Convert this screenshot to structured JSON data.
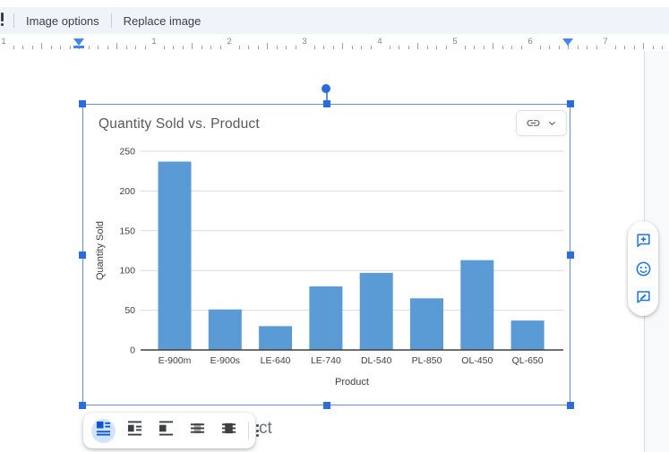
{
  "toolbar": {
    "image_options": "Image options",
    "replace_image": "Replace image"
  },
  "ruler": {
    "labels": [
      "1",
      "1",
      "2",
      "3",
      "4",
      "5",
      "6",
      "7"
    ],
    "left_indent_marker_icon": "indent-marker",
    "right_indent_marker_icon": "indent-marker"
  },
  "chart_data": {
    "type": "bar",
    "title": "Quantity Sold vs. Product",
    "categories": [
      "E-900m",
      "E-900s",
      "LE-640",
      "LE-740",
      "DL-540",
      "PL-850",
      "OL-450",
      "QL-650"
    ],
    "values": [
      237,
      51,
      30,
      80,
      97,
      65,
      113,
      37
    ],
    "xlabel": "Product",
    "ylabel": "Quantity Sold",
    "ylim": [
      0,
      250
    ],
    "yticks": [
      0,
      50,
      100,
      150,
      200,
      250
    ],
    "grid": true,
    "legend": "none",
    "bar_color": "#5b9bd5",
    "gridline_color": "#d9d9d9",
    "axis_color": "#404040",
    "title_color": "#595959"
  },
  "linked_chip": {
    "link_icon": "link-icon",
    "expand_icon": "chevron-down-icon"
  },
  "side_actions": {
    "buttons": [
      {
        "name": "add-comment",
        "icon": "comment-plus-icon"
      },
      {
        "name": "add-emoji-reaction",
        "icon": "emoji-icon"
      },
      {
        "name": "suggest-edits",
        "icon": "pencil-box-icon"
      }
    ],
    "icon_color": "#1a73e8"
  },
  "wrap_toolbar": {
    "options": [
      {
        "name": "in-line",
        "icon": "in-line-icon",
        "selected": true
      },
      {
        "name": "wrap-text",
        "icon": "wrap-text-icon",
        "selected": false
      },
      {
        "name": "break-text",
        "icon": "break-text-icon",
        "selected": false
      },
      {
        "name": "behind-text",
        "icon": "behind-text-icon",
        "selected": false
      },
      {
        "name": "in-front-of-text",
        "icon": "in-front-of-text-icon",
        "selected": false
      }
    ],
    "more_options_icon": "kebab-menu-icon",
    "selected_bg": "#d3e3fd",
    "selected_icon_color": "#0b57d0",
    "icon_color": "#3c4043"
  },
  "document_text_fragment": "ct",
  "colors": {
    "selection_blue": "#5b8def",
    "handle_blue": "#2a6ce0",
    "toolbar_bg": "#eff3fa",
    "accent_blue": "#1a73e8"
  }
}
